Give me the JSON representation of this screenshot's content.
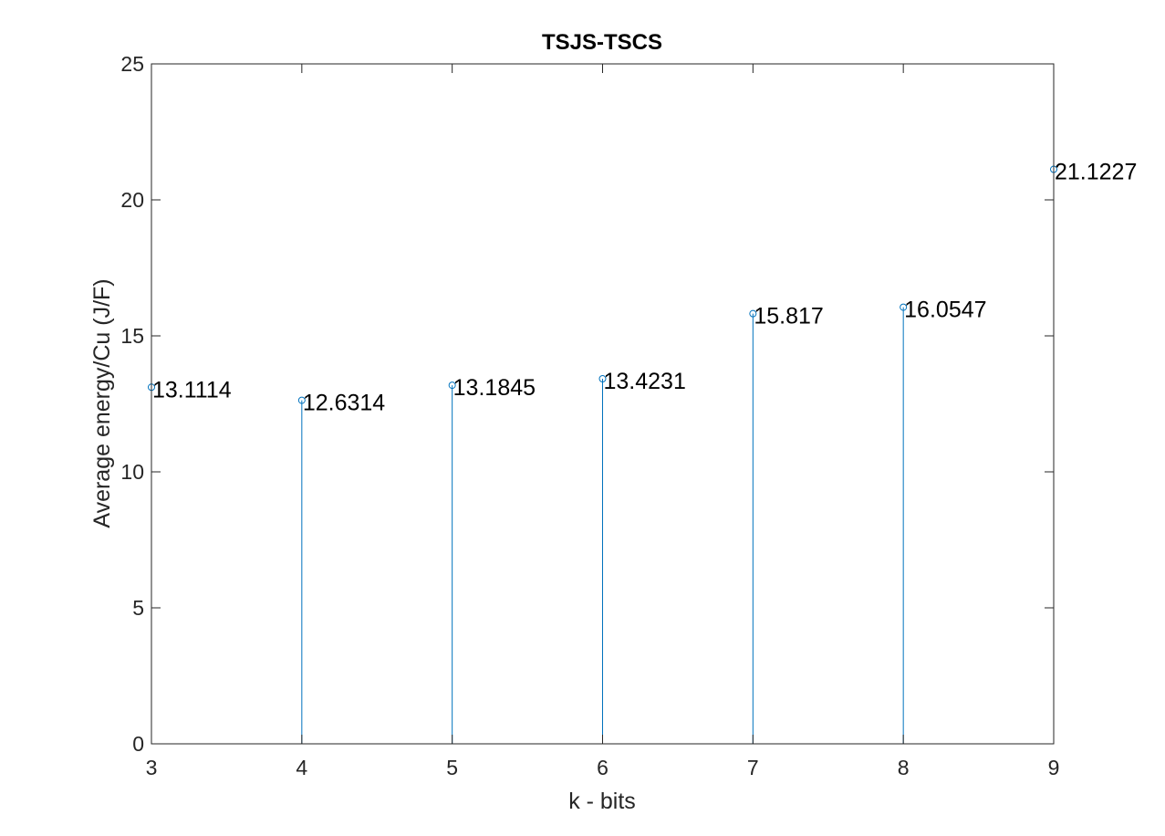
{
  "chart_data": {
    "type": "stem",
    "title": "TSJS-TSCS",
    "xlabel": "k - bits",
    "ylabel": "Average energy/Cu (J/F)",
    "x": [
      3,
      4,
      5,
      6,
      7,
      8,
      9
    ],
    "values": [
      13.1114,
      12.6314,
      13.1845,
      13.4231,
      15.817,
      16.0547,
      21.1227
    ],
    "data_labels": [
      "13.1114",
      "12.6314",
      "13.1845",
      "13.4231",
      "15.817",
      "16.0547",
      "21.1227"
    ],
    "xlim": [
      3,
      9
    ],
    "ylim": [
      0,
      25
    ],
    "xticks": [
      3,
      4,
      5,
      6,
      7,
      8,
      9
    ],
    "yticks": [
      0,
      5,
      10,
      15,
      20,
      25
    ],
    "grid": false,
    "legend": "none",
    "colors": {
      "stem": "#0072BD",
      "axis": "#262626",
      "text": "#000000"
    }
  }
}
